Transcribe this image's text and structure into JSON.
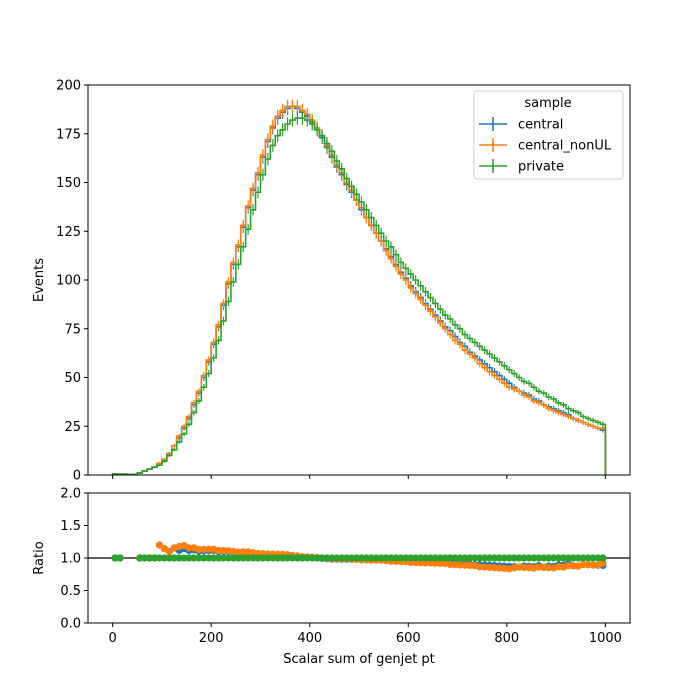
{
  "colors": {
    "central": "#1f77b4",
    "central_nonUL": "#ff7f0e",
    "private": "#2ca02c"
  },
  "chart_data": [
    {
      "type": "step",
      "panel": "main",
      "xlabel": "",
      "ylabel": "Events",
      "xlim": [
        -50,
        1050
      ],
      "ylim": [
        0,
        200
      ],
      "yticks": [
        0,
        25,
        50,
        75,
        100,
        125,
        150,
        175,
        200
      ],
      "xticks": [
        0,
        200,
        400,
        600,
        800,
        1000
      ],
      "grid": false,
      "legend": {
        "title": "sample",
        "placement": "top-right",
        "entries": [
          "central",
          "central_nonUL",
          "private"
        ]
      },
      "bin_edges_start": 0,
      "bin_width": 10,
      "series": [
        {
          "name": "central",
          "values": [
            0.5,
            0.4,
            0.5,
            0.2,
            0.3,
            1,
            2,
            3,
            4,
            6,
            8,
            11,
            15,
            19,
            24,
            29,
            36,
            42,
            50,
            58,
            67,
            76,
            87,
            98,
            108,
            117,
            127,
            137,
            146,
            154,
            163,
            171,
            178,
            183,
            186,
            188,
            189,
            188,
            186,
            184,
            181,
            177,
            173,
            168,
            163,
            158,
            154,
            149,
            145,
            141,
            136,
            132,
            128,
            124,
            120,
            116,
            112,
            108,
            104,
            101,
            97,
            94,
            91,
            88,
            85,
            82,
            79,
            76,
            74,
            71,
            68,
            66,
            63,
            61,
            59,
            57,
            55,
            53,
            51,
            49,
            47,
            45,
            43,
            42,
            41,
            39,
            38,
            36,
            35,
            34,
            33,
            32,
            31,
            29,
            28,
            27,
            26,
            25,
            24,
            23
          ]
        },
        {
          "name": "central_nonUL",
          "values": [
            0.5,
            0.4,
            0.5,
            0.2,
            0.3,
            1,
            2,
            3,
            4,
            6,
            8,
            11,
            15,
            20,
            25,
            30,
            37,
            43,
            51,
            59,
            68,
            77,
            88,
            99,
            109,
            118,
            128,
            138,
            147,
            155,
            164,
            172,
            179,
            184,
            187,
            189,
            189,
            189,
            187,
            185,
            182,
            178,
            174,
            169,
            164,
            159,
            155,
            150,
            146,
            141,
            137,
            132,
            128,
            124,
            120,
            115,
            111,
            107,
            103,
            100,
            96,
            93,
            90,
            87,
            84,
            81,
            78,
            75,
            72,
            69,
            67,
            64,
            62,
            60,
            57,
            55,
            53,
            51,
            49,
            47,
            45,
            44,
            43,
            41,
            40,
            38,
            37,
            36,
            34,
            33,
            32,
            31,
            30,
            29,
            28,
            27,
            26,
            25,
            24,
            24
          ]
        },
        {
          "name": "private",
          "values": [
            0.5,
            0.4,
            0.3,
            0.3,
            0.3,
            1,
            2,
            3,
            4,
            5,
            7,
            10,
            13,
            17,
            21,
            26,
            32,
            38,
            45,
            52,
            60,
            69,
            79,
            89,
            99,
            108,
            117,
            126,
            136,
            145,
            154,
            162,
            169,
            174,
            177,
            180,
            182,
            183,
            183,
            182,
            180,
            177,
            174,
            170,
            166,
            161,
            157,
            152,
            148,
            144,
            140,
            136,
            132,
            128,
            124,
            120,
            117,
            113,
            109,
            106,
            103,
            100,
            97,
            94,
            91,
            88,
            85,
            82,
            80,
            77,
            75,
            72,
            70,
            68,
            66,
            64,
            62,
            60,
            58,
            56,
            54,
            52,
            50,
            48,
            47,
            45,
            43,
            42,
            40,
            39,
            37,
            36,
            34,
            33,
            32,
            30,
            29,
            28,
            27,
            26
          ]
        }
      ]
    },
    {
      "type": "scatter",
      "panel": "ratio",
      "xlabel": "Scalar sum of genjet pt",
      "ylabel": "Ratio",
      "xlim": [
        -50,
        1050
      ],
      "ylim": [
        0,
        2
      ],
      "yticks": [
        "0.0",
        "0.5",
        "1.0",
        "1.5",
        "2.0"
      ],
      "xticks": [
        0,
        200,
        400,
        600,
        800,
        1000
      ],
      "reference_line": 1.0,
      "series": [
        {
          "name": "central",
          "reference": "private"
        },
        {
          "name": "central_nonUL",
          "reference": "private"
        },
        {
          "name": "private",
          "reference": "private"
        }
      ]
    }
  ]
}
